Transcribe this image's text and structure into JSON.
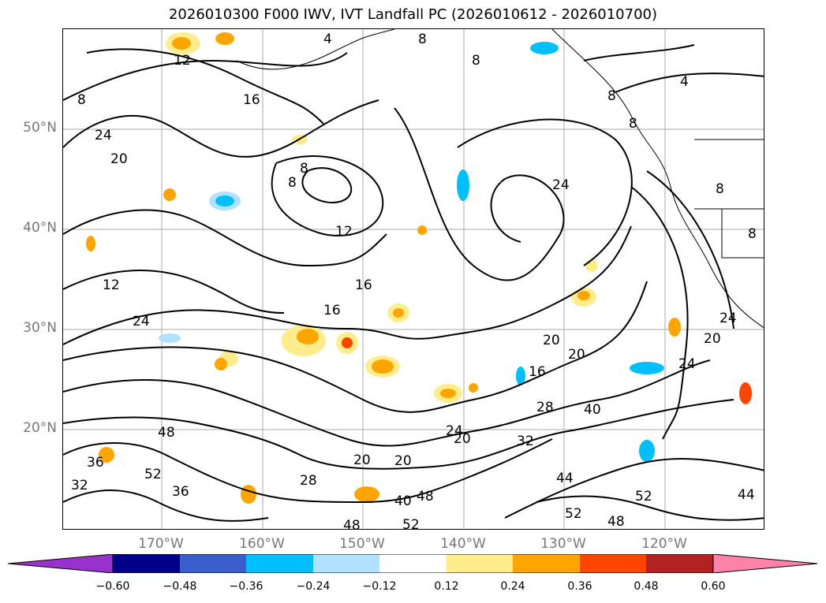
{
  "title": "2026010300 F000 IWV, IVT Landfall PC (2026010612 - 2026010700)",
  "axes": {
    "lat_labels": [
      "50°N",
      "40°N",
      "30°N",
      "20°N"
    ],
    "lon_labels": [
      "170°W",
      "160°W",
      "150°W",
      "140°W",
      "130°W",
      "120°W"
    ]
  },
  "contour_labels": [
    "4",
    "4",
    "8",
    "8",
    "8",
    "8",
    "8",
    "8",
    "8",
    "8",
    "8",
    "12",
    "12",
    "12",
    "16",
    "16",
    "16",
    "16",
    "20",
    "20",
    "20",
    "20",
    "20",
    "20",
    "20",
    "24",
    "24",
    "24",
    "24",
    "24",
    "24",
    "28",
    "28",
    "32",
    "32",
    "36",
    "36",
    "40",
    "40",
    "44",
    "44",
    "48",
    "48",
    "48",
    "48",
    "52",
    "52",
    "52",
    "52"
  ],
  "colorbar": {
    "ticks": [
      "−0.60",
      "−0.48",
      "−0.36",
      "−0.24",
      "−0.12",
      "0.12",
      "0.24",
      "0.36",
      "0.48",
      "0.60"
    ],
    "colors": [
      "#9932cc",
      "#00008b",
      "#3a5fcd",
      "#00bfff",
      "#b0e2ff",
      "#ffffff",
      "#ffec8b",
      "#ffa500",
      "#ff4500",
      "#b22222",
      "#ff82ab"
    ]
  },
  "shading_colors": {
    "pos_light": "#ffec8b",
    "pos_mid": "#ffa500",
    "pos_strong": "#ff4500",
    "neg_light": "#b0e2ff",
    "neg_mid": "#00bfff"
  }
}
